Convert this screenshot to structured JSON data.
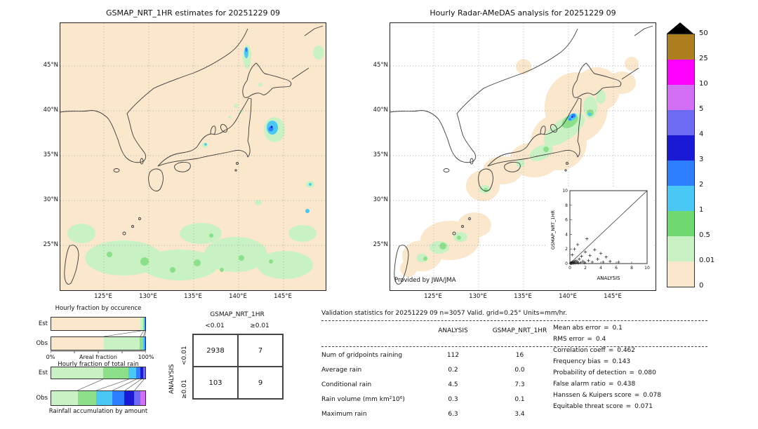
{
  "panels": {
    "left_map": {
      "title": "GSMAP_NRT_1HR estimates for 20251229 09"
    },
    "right_map": {
      "title": "Hourly Radar-AMeDAS analysis for 20251229 09",
      "credit": "Provided by JWA/JMA"
    }
  },
  "map_axes": {
    "lat_ticks": [
      "45°N",
      "40°N",
      "35°N",
      "30°N",
      "25°N"
    ],
    "lon_ticks": [
      "125°E",
      "130°E",
      "135°E",
      "140°E",
      "145°E"
    ]
  },
  "colorbar": {
    "levels": [
      "50",
      "25",
      "10",
      "5",
      "4",
      "3",
      "2",
      "1",
      "0.5",
      "0.01",
      "0"
    ],
    "seg_colors": [
      "#ad7f1e",
      "#ff00ff",
      "#d36ff4",
      "#6f6af2",
      "#1a1ad6",
      "#2e7fff",
      "#49c8f5",
      "#6fd96f",
      "#c9f2c4",
      "#fbe7cb"
    ]
  },
  "inset": {
    "xlabel": "ANALYSIS",
    "ylabel": "GSMAP_NRT_1HR",
    "ticks": [
      "0",
      "2",
      "4",
      "6",
      "8",
      "10"
    ]
  },
  "occurrence": {
    "title": "Hourly fraction by occurence",
    "rows": [
      {
        "label": "Est",
        "segments": [
          {
            "pct": 95,
            "color": "#fbe7cb"
          },
          {
            "pct": 2.5,
            "color": "#c9f2c4"
          },
          {
            "pct": 1.5,
            "color": "#8ce08a"
          },
          {
            "pct": 0.6,
            "color": "#49c8f5"
          },
          {
            "pct": 0.4,
            "color": "#2e7fff"
          }
        ]
      },
      {
        "label": "Obs",
        "segments": [
          {
            "pct": 56,
            "color": "#fbe7cb"
          },
          {
            "pct": 38,
            "color": "#c9f2c4"
          },
          {
            "pct": 3.5,
            "color": "#8ce08a"
          },
          {
            "pct": 1.5,
            "color": "#49c8f5"
          },
          {
            "pct": 1,
            "color": "#2e7fff"
          }
        ]
      }
    ],
    "axis_left": "0%",
    "axis_label": "Areal fraction",
    "axis_right": "100%"
  },
  "total_rain": {
    "title": "Hourly fraction of total rain",
    "caption": "Rainfall accumulation by amount",
    "rows": [
      {
        "label": "Est",
        "segments": [
          {
            "pct": 55,
            "color": "#c9f2c4"
          },
          {
            "pct": 27,
            "color": "#8ce08a"
          },
          {
            "pct": 8,
            "color": "#49c8f5"
          },
          {
            "pct": 5,
            "color": "#2e7fff"
          },
          {
            "pct": 3,
            "color": "#1a1ad6"
          },
          {
            "pct": 2,
            "color": "#6f6af2"
          }
        ]
      },
      {
        "label": "Obs",
        "segments": [
          {
            "pct": 28,
            "color": "#c9f2c4"
          },
          {
            "pct": 20,
            "color": "#8ce08a"
          },
          {
            "pct": 17,
            "color": "#49c8f5"
          },
          {
            "pct": 13,
            "color": "#2e7fff"
          },
          {
            "pct": 10,
            "color": "#1a1ad6"
          },
          {
            "pct": 7,
            "color": "#6f6af2"
          },
          {
            "pct": 5,
            "color": "#d36ff4"
          }
        ]
      }
    ]
  },
  "contingency": {
    "col_group": "GSMAP_NRT_1HR",
    "row_group": "ANALYSIS",
    "col_labels": [
      "<0.01",
      "≥0.01"
    ],
    "row_labels": [
      "<0.01",
      "≥0.01"
    ],
    "values": [
      [
        "2938",
        "7"
      ],
      [
        "103",
        "9"
      ]
    ]
  },
  "validation": {
    "title": "Validation statistics for 20251229 09  n=3057 Valid. grid=0.25° Units=mm/hr.",
    "eq": "=",
    "col_headers": [
      "ANALYSIS",
      "GSMAP_NRT_1HR"
    ],
    "rows": [
      {
        "label": "Num of gridpoints raining",
        "analysis": "112",
        "gsmap": "16"
      },
      {
        "label": "Average rain",
        "analysis": "0.2",
        "gsmap": "0.0"
      },
      {
        "label": "Conditional rain",
        "analysis": "4.5",
        "gsmap": "7.3"
      },
      {
        "label": "Rain volume (mm km²10⁶)",
        "analysis": "0.3",
        "gsmap": "0.1"
      },
      {
        "label": "Maximum rain",
        "analysis": "6.3",
        "gsmap": "3.4"
      }
    ],
    "scores": [
      {
        "label": "Mean abs error",
        "value": "0.1"
      },
      {
        "label": "RMS error",
        "value": "0.4"
      },
      {
        "label": "Correlation coeff",
        "value": "0.462"
      },
      {
        "label": "Frequency bias",
        "value": "0.143"
      },
      {
        "label": "Probability of detection",
        "value": "0.080"
      },
      {
        "label": "False alarm ratio",
        "value": "0.438"
      },
      {
        "label": "Hanssen & Kuipers score",
        "value": "0.078"
      },
      {
        "label": "Equitable threat score",
        "value": "0.071"
      }
    ]
  },
  "chart_data": [
    {
      "type": "heatmap",
      "title": "GSMAP_NRT_1HR estimates for 20251229 09",
      "x_ticks": [
        "125°E",
        "130°E",
        "135°E",
        "140°E",
        "145°E"
      ],
      "y_ticks": [
        "45°N",
        "40°N",
        "35°N",
        "30°N",
        "25°N"
      ],
      "units": "mm/hr",
      "colorbar_levels": [
        0,
        0.01,
        0.5,
        1,
        2,
        3,
        4,
        5,
        10,
        25,
        50
      ],
      "legend_position": "right",
      "description": "Satellite precipitation estimate map over Japan; widespread 0-0.01 background with 0.01-0.5 patches south of 30N and cells up to ~5 mm/hr east of northern Honshu"
    },
    {
      "type": "heatmap",
      "title": "Hourly Radar-AMeDAS analysis for 20251229 09",
      "x_ticks": [
        "125°E",
        "130°E",
        "135°E",
        "140°E",
        "145°E"
      ],
      "y_ticks": [
        "45°N",
        "40°N",
        "35°N",
        "30°N",
        "25°N"
      ],
      "units": "mm/hr",
      "colorbar_levels": [
        0,
        0.01,
        0.5,
        1,
        2,
        3,
        4,
        5,
        10,
        25,
        50
      ],
      "description": "Radar-gauge analysis confined to bands along Honshu and the southwest islands, embedded cells up to ~5 mm/hr over northern Honshu"
    },
    {
      "type": "scatter",
      "title": "ANALYSIS vs GSMAP_NRT_1HR",
      "xlabel": "ANALYSIS",
      "ylabel": "GSMAP_NRT_1HR",
      "xlim": [
        0,
        10
      ],
      "ylim": [
        0,
        10
      ],
      "reference_line": "y=x",
      "points": [
        [
          0.05,
          0.02
        ],
        [
          0.1,
          0.05
        ],
        [
          0.15,
          0.1
        ],
        [
          0.2,
          0.02
        ],
        [
          0.25,
          0.15
        ],
        [
          0.3,
          0.05
        ],
        [
          0.35,
          0.25
        ],
        [
          0.4,
          0.1
        ],
        [
          0.5,
          0.05
        ],
        [
          0.55,
          0.3
        ],
        [
          0.6,
          0.15
        ],
        [
          0.7,
          0.05
        ],
        [
          0.8,
          0.4
        ],
        [
          0.9,
          0.1
        ],
        [
          1.0,
          0.25
        ],
        [
          1.1,
          0.05
        ],
        [
          1.2,
          0.6
        ],
        [
          1.4,
          0.15
        ],
        [
          1.5,
          1.0
        ],
        [
          1.7,
          0.3
        ],
        [
          1.9,
          0.1
        ],
        [
          2.0,
          1.6
        ],
        [
          2.2,
          3.4
        ],
        [
          2.4,
          0.4
        ],
        [
          2.6,
          1.1
        ],
        [
          2.9,
          0.2
        ],
        [
          3.2,
          1.9
        ],
        [
          3.6,
          0.6
        ],
        [
          4.0,
          1.4
        ],
        [
          4.3,
          0.2
        ],
        [
          4.7,
          0.9
        ],
        [
          5.2,
          0.3
        ],
        [
          6.3,
          0.2
        ],
        [
          0.3,
          1.2
        ],
        [
          0.6,
          2.0
        ],
        [
          1.0,
          2.6
        ]
      ]
    },
    {
      "type": "bar",
      "subtype": "stacked-horizontal",
      "title": "Hourly fraction by occurence",
      "categories": [
        "Est",
        "Obs"
      ],
      "series_pct": {
        "Est": [
          95,
          2.5,
          1.5,
          0.6,
          0.4
        ],
        "Obs": [
          56,
          38,
          3.5,
          1.5,
          1
        ]
      },
      "xlabel": "Areal fraction",
      "xlim": [
        "0%",
        "100%"
      ]
    },
    {
      "type": "bar",
      "subtype": "stacked-horizontal",
      "title": "Hourly fraction of total rain",
      "categories": [
        "Est",
        "Obs"
      ],
      "series_pct": {
        "Est": [
          55,
          27,
          8,
          5,
          3,
          2
        ],
        "Obs": [
          28,
          20,
          17,
          13,
          10,
          7,
          5
        ]
      },
      "caption": "Rainfall accumulation by amount"
    },
    {
      "type": "table",
      "title": "Contingency table",
      "col_group": "GSMAP_NRT_1HR",
      "row_group": "ANALYSIS",
      "col_labels": [
        "<0.01",
        "≥0.01"
      ],
      "row_labels": [
        "<0.01",
        "≥0.01"
      ],
      "values": [
        [
          2938,
          7
        ],
        [
          103,
          9
        ]
      ]
    },
    {
      "type": "table",
      "title": "Validation statistics for 20251229 09  n=3057 Valid. grid=0.25° Units=mm/hr.",
      "columns": [
        "",
        "ANALYSIS",
        "GSMAP_NRT_1HR"
      ],
      "rows": [
        [
          "Num of gridpoints raining",
          "112",
          "16"
        ],
        [
          "Average rain",
          "0.2",
          "0.0"
        ],
        [
          "Conditional rain",
          "4.5",
          "7.3"
        ],
        [
          "Rain volume (mm km²10⁶)",
          "0.3",
          "0.1"
        ],
        [
          "Maximum rain",
          "6.3",
          "3.4"
        ]
      ],
      "scores": [
        [
          "Mean abs error",
          "0.1"
        ],
        [
          "RMS error",
          "0.4"
        ],
        [
          "Correlation coeff",
          "0.462"
        ],
        [
          "Frequency bias",
          "0.143"
        ],
        [
          "Probability of detection",
          "0.080"
        ],
        [
          "False alarm ratio",
          "0.438"
        ],
        [
          "Hanssen & Kuipers score",
          "0.078"
        ],
        [
          "Equitable threat score",
          "0.071"
        ]
      ]
    }
  ]
}
